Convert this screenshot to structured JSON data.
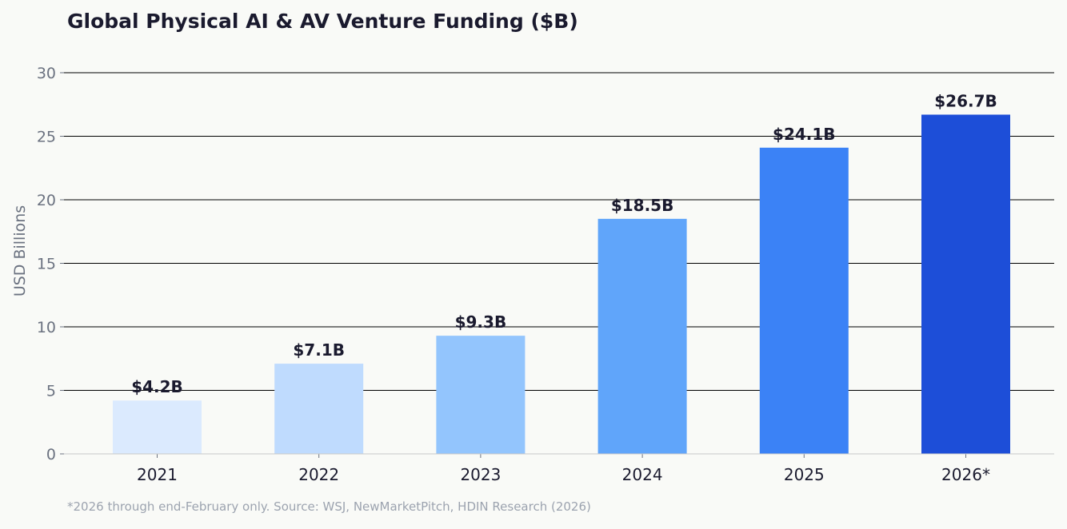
{
  "chart_data": {
    "type": "bar",
    "title": "Global Physical AI & AV Venture Funding ($B)",
    "xlabel": "",
    "ylabel": "USD Billions",
    "categories": [
      "2021",
      "2022",
      "2023",
      "2024",
      "2025",
      "2026*"
    ],
    "values": [
      4.2,
      7.1,
      9.3,
      18.5,
      24.1,
      26.7
    ],
    "data_labels": [
      "$4.2B",
      "$7.1B",
      "$9.3B",
      "$18.5B",
      "$24.1B",
      "$26.7B"
    ],
    "colors": [
      "#dbeafe",
      "#bfdbfe",
      "#93c5fd",
      "#60a5fa",
      "#3b82f6",
      "#1d4ed8"
    ],
    "ylim": [
      0,
      30
    ],
    "yticks": [
      0,
      5,
      10,
      15,
      20,
      25,
      30
    ],
    "grid": true,
    "legend": "none",
    "footnote": "*2026 through end-February only.  Source: WSJ, NewMarketPitch, HDIN Research (2026)"
  }
}
